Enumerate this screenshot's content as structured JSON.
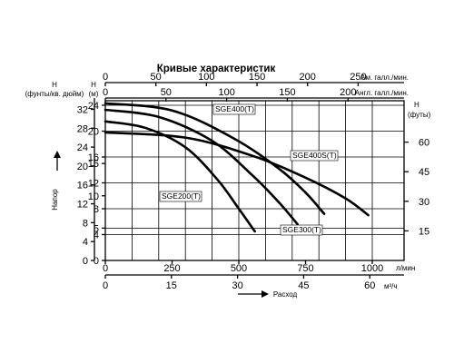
{
  "chart_data": {
    "type": "line",
    "title": "Кривые характеристик",
    "x_axes": {
      "top_amgal": {
        "unit": "Ам. галл./мин.",
        "ticks": [
          "0",
          "50",
          "100",
          "150",
          "200",
          "250"
        ],
        "range": [
          0,
          264
        ]
      },
      "top_impgal": {
        "unit": "Англ. галл./мин.",
        "ticks": [
          "0",
          "50",
          "100",
          "150",
          "200"
        ],
        "range": [
          0,
          220
        ]
      },
      "bottom_lpm": {
        "unit": "л/мин",
        "ticks": [
          "0",
          "250",
          "500",
          "750",
          "1000"
        ],
        "range": [
          0,
          1000
        ]
      },
      "bottom_m3h": {
        "unit": "м³/ч",
        "ticks": [
          "0",
          "15",
          "30",
          "45",
          "60"
        ],
        "range": [
          0,
          60
        ]
      }
    },
    "y_axes": {
      "left_psi": {
        "unit_lines": [
          "Н",
          "(фунты/кв. дюйм)"
        ],
        "ticks": [
          "0",
          "4",
          "8",
          "12",
          "16",
          "20",
          "24",
          "28",
          "32"
        ],
        "range": [
          0,
          34.2
        ]
      },
      "left_m": {
        "unit_lines": [
          "Н",
          "(м)"
        ],
        "ticks": [
          "0",
          "4",
          "5",
          "8",
          "10",
          "12",
          "15",
          "16",
          "20",
          "24"
        ],
        "range": [
          0,
          24
        ]
      },
      "right_ft": {
        "unit_lines": [
          "Н",
          "(футы)"
        ],
        "ticks": [
          "15",
          "30",
          "45",
          "60"
        ],
        "range": [
          0,
          78.7
        ]
      }
    },
    "left_label": "Напор",
    "bottom_label": "Расход",
    "gridlines_m": [
      4,
      8,
      12,
      16,
      20,
      24
    ],
    "gridlines_lpm": [
      0,
      100,
      200,
      300,
      400,
      500,
      600,
      700,
      800,
      900,
      1000
    ],
    "series": [
      {
        "name": "SGE200(T)",
        "x_lpm": [
          0,
          150,
          300,
          420,
          500,
          560
        ],
        "y_m": [
          21.5,
          20.5,
          17.5,
          12.5,
          8,
          4.5
        ]
      },
      {
        "name": "SGE300(T)",
        "x_lpm": [
          0,
          200,
          400,
          550,
          650,
          720
        ],
        "y_m": [
          23.3,
          22.2,
          18.5,
          13.2,
          9,
          5.6
        ]
      },
      {
        "name": "SGE400(T)",
        "x_lpm": [
          0,
          250,
          480,
          650,
          750,
          820
        ],
        "y_m": [
          24.3,
          23.2,
          18.9,
          14.2,
          10.5,
          7.2
        ]
      },
      {
        "name": "SGE400S(T)",
        "x_lpm": [
          0,
          300,
          550,
          750,
          900,
          985
        ],
        "y_m": [
          19.8,
          19,
          16.2,
          12.8,
          9.6,
          7
        ]
      }
    ],
    "annotations": [
      "SGE400(T)",
      "SGE400S(T)",
      "SGE200(T)",
      "SGE300(T)"
    ]
  }
}
